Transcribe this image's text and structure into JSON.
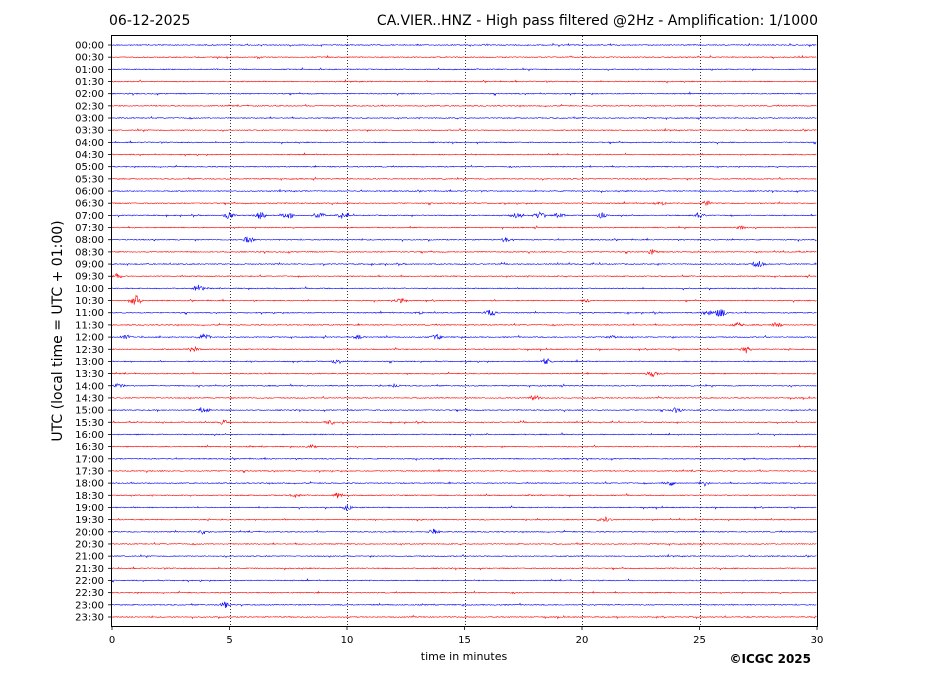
{
  "header": {
    "date": "06-12-2025",
    "title": "CA.VIER..HNZ - High pass filtered @2Hz - Amplification: 1/1000"
  },
  "footer": {
    "copyright": "©ICGC 2025"
  },
  "chart_data": {
    "type": "line",
    "title": "CA.VIER..HNZ - High pass filtered @2Hz - Amplification: 1/1000",
    "xlabel": "time in minutes",
    "ylabel": "UTC (local time = UTC + 01:00)",
    "xlim": [
      0,
      30
    ],
    "xticks": [
      0,
      5,
      10,
      15,
      20,
      25,
      30
    ],
    "grid": "vertical dotted lines at each x tick",
    "row_labels": [
      "00:00",
      "00:30",
      "01:00",
      "01:30",
      "02:00",
      "02:30",
      "03:00",
      "03:30",
      "04:00",
      "04:30",
      "05:00",
      "05:30",
      "06:00",
      "06:30",
      "07:00",
      "07:30",
      "08:00",
      "08:30",
      "09:00",
      "09:30",
      "10:00",
      "10:30",
      "11:00",
      "11:30",
      "12:00",
      "12:30",
      "13:00",
      "13:30",
      "14:00",
      "14:30",
      "15:00",
      "15:30",
      "16:00",
      "16:30",
      "17:00",
      "17:30",
      "18:00",
      "18:30",
      "19:00",
      "19:30",
      "20:00",
      "20:30",
      "21:00",
      "21:30",
      "22:00",
      "22:30",
      "23:00",
      "23:30"
    ],
    "trace_colors": [
      "#0000ff",
      "#ff0000"
    ],
    "event_bursts": [
      {
        "row": "06:30",
        "x": 23.3,
        "amp": 3
      },
      {
        "row": "06:30",
        "x": 25.3,
        "amp": 3
      },
      {
        "row": "07:00",
        "x": 5.0,
        "amp": 4
      },
      {
        "row": "07:00",
        "x": 6.3,
        "amp": 4
      },
      {
        "row": "07:00",
        "x": 7.5,
        "amp": 4
      },
      {
        "row": "07:00",
        "x": 8.8,
        "amp": 4
      },
      {
        "row": "07:00",
        "x": 9.8,
        "amp": 4
      },
      {
        "row": "07:00",
        "x": 17.2,
        "amp": 3
      },
      {
        "row": "07:00",
        "x": 18.2,
        "amp": 4
      },
      {
        "row": "07:00",
        "x": 19.0,
        "amp": 3
      },
      {
        "row": "07:00",
        "x": 20.8,
        "amp": 3
      },
      {
        "row": "07:00",
        "x": 25.0,
        "amp": 3
      },
      {
        "row": "07:30",
        "x": 26.8,
        "amp": 2
      },
      {
        "row": "08:00",
        "x": 5.8,
        "amp": 4
      },
      {
        "row": "08:00",
        "x": 16.8,
        "amp": 3
      },
      {
        "row": "08:30",
        "x": 23.0,
        "amp": 3
      },
      {
        "row": "09:00",
        "x": 27.5,
        "amp": 4
      },
      {
        "row": "09:30",
        "x": 0.2,
        "amp": 3
      },
      {
        "row": "10:00",
        "x": 3.7,
        "amp": 4
      },
      {
        "row": "10:30",
        "x": 1.0,
        "amp": 6
      },
      {
        "row": "10:30",
        "x": 12.3,
        "amp": 3
      },
      {
        "row": "10:30",
        "x": 20.2,
        "amp": 2
      },
      {
        "row": "11:00",
        "x": 13.0,
        "amp": 2
      },
      {
        "row": "11:00",
        "x": 16.1,
        "amp": 4
      },
      {
        "row": "11:00",
        "x": 25.3,
        "amp": 3
      },
      {
        "row": "11:00",
        "x": 25.9,
        "amp": 5
      },
      {
        "row": "11:30",
        "x": 26.6,
        "amp": 3
      },
      {
        "row": "11:30",
        "x": 28.3,
        "amp": 3
      },
      {
        "row": "12:00",
        "x": 0.6,
        "amp": 3
      },
      {
        "row": "12:00",
        "x": 3.9,
        "amp": 4
      },
      {
        "row": "12:00",
        "x": 10.5,
        "amp": 3
      },
      {
        "row": "12:00",
        "x": 13.8,
        "amp": 3
      },
      {
        "row": "12:00",
        "x": 21.3,
        "amp": 2
      },
      {
        "row": "12:30",
        "x": 3.5,
        "amp": 3
      },
      {
        "row": "12:30",
        "x": 27.0,
        "amp": 3
      },
      {
        "row": "13:00",
        "x": 9.6,
        "amp": 3
      },
      {
        "row": "13:00",
        "x": 18.5,
        "amp": 3
      },
      {
        "row": "13:30",
        "x": 23.0,
        "amp": 3
      },
      {
        "row": "14:00",
        "x": 0.3,
        "amp": 3
      },
      {
        "row": "14:00",
        "x": 12.0,
        "amp": 2
      },
      {
        "row": "14:30",
        "x": 18.0,
        "amp": 3
      },
      {
        "row": "15:00",
        "x": 3.9,
        "amp": 3
      },
      {
        "row": "15:00",
        "x": 24.0,
        "amp": 3
      },
      {
        "row": "15:30",
        "x": 4.8,
        "amp": 3
      },
      {
        "row": "15:30",
        "x": 9.3,
        "amp": 3
      },
      {
        "row": "16:30",
        "x": 8.5,
        "amp": 2
      },
      {
        "row": "18:00",
        "x": 23.7,
        "amp": 4
      },
      {
        "row": "18:00",
        "x": 25.2,
        "amp": 3
      },
      {
        "row": "18:30",
        "x": 7.8,
        "amp": 2
      },
      {
        "row": "18:30",
        "x": 9.6,
        "amp": 3
      },
      {
        "row": "19:00",
        "x": 10.0,
        "amp": 3
      },
      {
        "row": "19:30",
        "x": 21.0,
        "amp": 3
      },
      {
        "row": "20:00",
        "x": 3.9,
        "amp": 3
      },
      {
        "row": "20:00",
        "x": 13.7,
        "amp": 3
      },
      {
        "row": "23:00",
        "x": 4.8,
        "amp": 3
      }
    ]
  }
}
